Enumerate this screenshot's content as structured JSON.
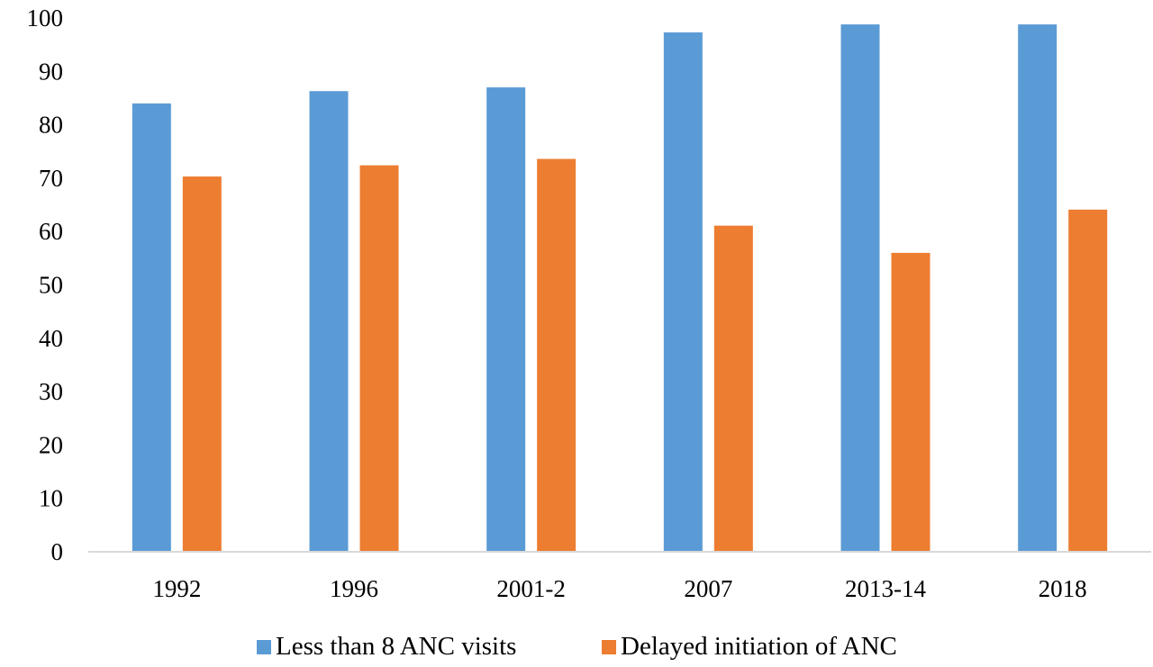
{
  "chart_data": {
    "type": "bar",
    "categories": [
      "1992",
      "1996",
      "2001-2",
      "2007",
      "2013-14",
      "2018"
    ],
    "series": [
      {
        "name": "Less than 8 ANC visits",
        "color": "#5B9BD5",
        "values": [
          84,
          86.3,
          87,
          97.3,
          98.8,
          98.8
        ]
      },
      {
        "name": "Delayed initiation of ANC",
        "color": "#ED7D31",
        "values": [
          70.3,
          72.4,
          73.6,
          61.1,
          56,
          64.1
        ]
      }
    ],
    "ylim": [
      0,
      100
    ],
    "yticks": [
      0,
      10,
      20,
      30,
      40,
      50,
      60,
      70,
      80,
      90,
      100
    ],
    "title": "",
    "xlabel": "",
    "ylabel": "",
    "grid": false,
    "legend_position": "bottom",
    "axis_color": "#D9D9D9"
  }
}
